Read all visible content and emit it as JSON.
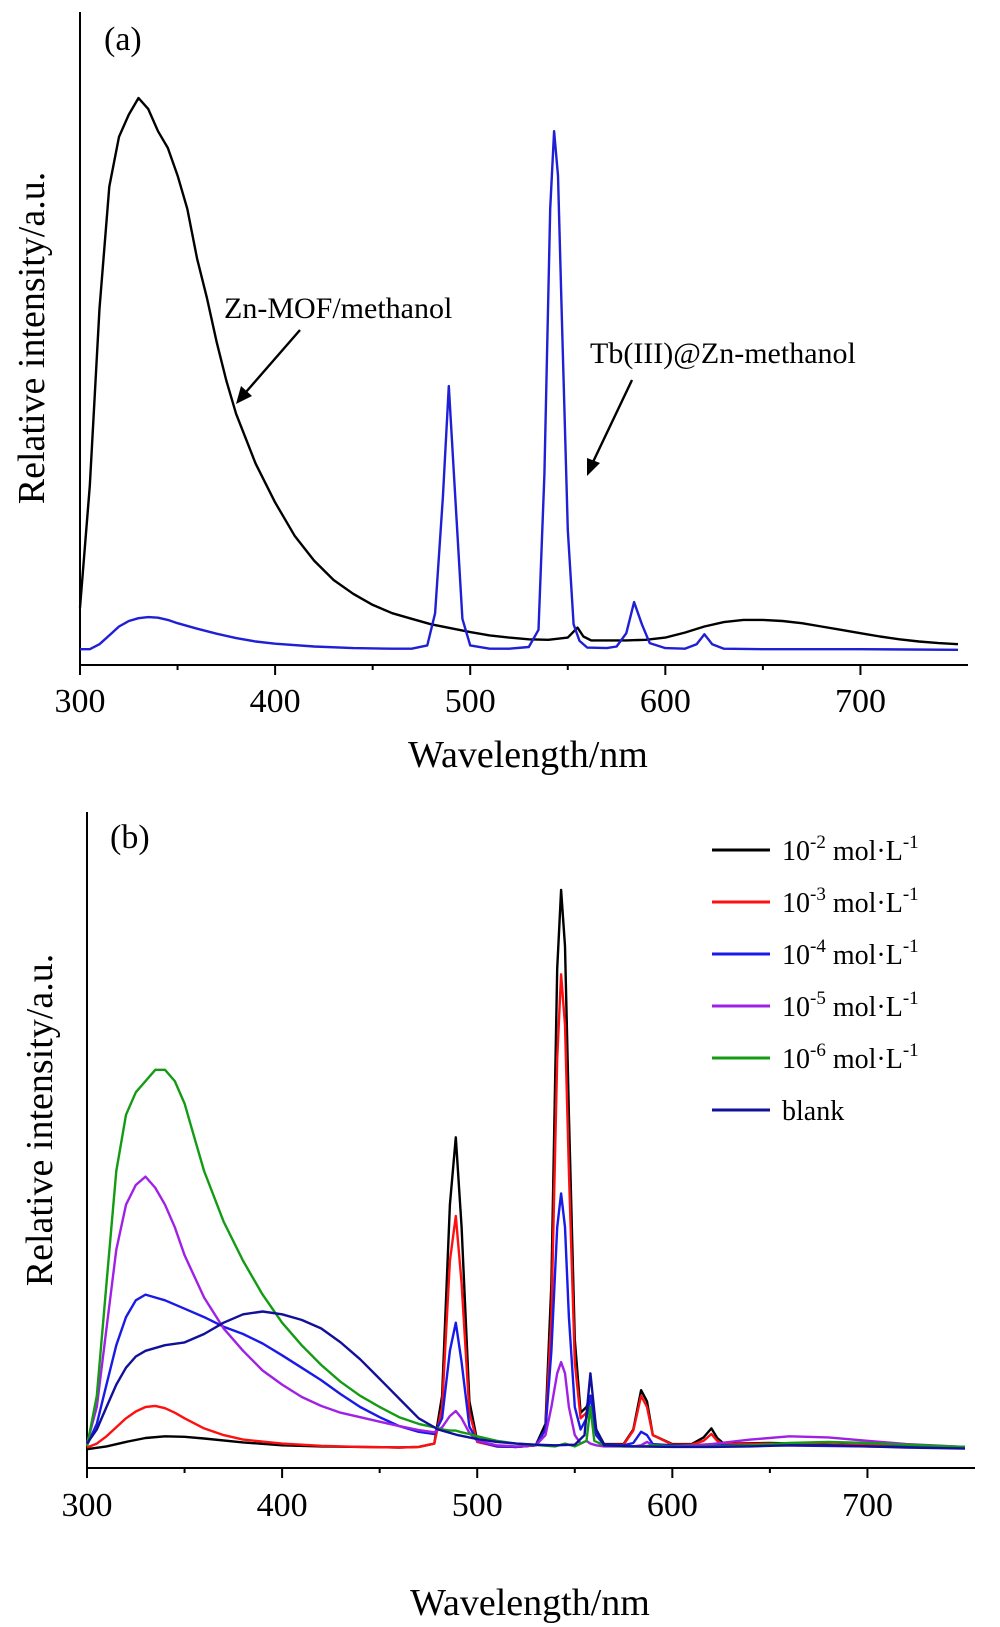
{
  "chart_data": [
    {
      "type": "line",
      "panel_label": "(a)",
      "xlabel": "Wavelength/nm",
      "ylabel": "Relative intensity/a.u.",
      "xlim": [
        300,
        750
      ],
      "ylim": [
        0,
        100
      ],
      "xticks": [
        300,
        400,
        500,
        600,
        700
      ],
      "grid": false,
      "annotations": [
        {
          "text": "Zn-MOF/methanol",
          "points_to": {
            "x": 378,
            "y": 46
          }
        },
        {
          "text": "Tb(III)@Zn-methanol",
          "points_to": {
            "x": 555,
            "y": 33
          }
        }
      ],
      "series": [
        {
          "color": "#000000",
          "x": [
            300,
            305,
            310,
            315,
            320,
            325,
            330,
            335,
            340,
            345,
            350,
            355,
            360,
            365,
            370,
            375,
            380,
            390,
            400,
            410,
            420,
            430,
            440,
            450,
            460,
            470,
            480,
            490,
            500,
            510,
            520,
            530,
            540,
            550,
            555,
            558,
            562,
            570,
            580,
            590,
            600,
            610,
            620,
            630,
            640,
            650,
            660,
            670,
            680,
            690,
            700,
            710,
            720,
            730,
            740,
            750
          ],
          "y": [
            8,
            30,
            62,
            84,
            93,
            97,
            100,
            98,
            94,
            91,
            86,
            80,
            71,
            64,
            56,
            49,
            43,
            34,
            27,
            21,
            16.5,
            13,
            10.5,
            8.5,
            7,
            6,
            5,
            4.3,
            3.6,
            3,
            2.6,
            2.3,
            2.2,
            2.6,
            4.4,
            2.8,
            2.1,
            2.1,
            2.1,
            2.2,
            2.6,
            3.5,
            4.6,
            5.4,
            5.8,
            5.8,
            5.6,
            5.2,
            4.6,
            4,
            3.4,
            2.8,
            2.3,
            1.9,
            1.6,
            1.4
          ]
        },
        {
          "color": "#1f1fd6",
          "x": [
            300,
            305,
            310,
            315,
            320,
            325,
            330,
            335,
            340,
            345,
            350,
            360,
            370,
            380,
            390,
            400,
            420,
            440,
            460,
            470,
            478,
            482,
            486,
            489,
            492,
            496,
            500,
            510,
            520,
            530,
            535,
            538,
            541,
            543,
            545,
            547,
            550,
            553,
            556,
            560,
            570,
            575,
            580,
            584,
            588,
            592,
            600,
            610,
            616,
            620,
            624,
            630,
            650,
            700,
            750
          ],
          "y": [
            0.5,
            0.5,
            1.4,
            3,
            4.6,
            5.6,
            6.1,
            6.3,
            6.2,
            5.8,
            5.2,
            4.2,
            3.3,
            2.5,
            1.9,
            1.5,
            1,
            0.7,
            0.6,
            0.6,
            1.2,
            7,
            28,
            48,
            30,
            6,
            1.2,
            0.6,
            0.6,
            0.9,
            4,
            32,
            80,
            94,
            86,
            60,
            22,
            5,
            2,
            0.8,
            0.7,
            1,
            3.4,
            9,
            5,
            1.6,
            0.7,
            0.6,
            1.4,
            3.2,
            1.4,
            0.6,
            0.5,
            0.5,
            0.4
          ]
        }
      ]
    },
    {
      "type": "line",
      "panel_label": "(b)",
      "xlabel": "Wavelength/nm",
      "ylabel": "Relative intensity/a.u.",
      "xlim": [
        300,
        750
      ],
      "ylim": [
        0,
        100
      ],
      "xticks": [
        300,
        400,
        500,
        600,
        700
      ],
      "grid": false,
      "legend_position": "top-right",
      "series": [
        {
          "name": "10-2 mol·L-1",
          "legend_base": "10",
          "legend_exp1": "-2",
          "legend_unit": " mol·L",
          "legend_exp2": "-1",
          "color": "#000000",
          "x": [
            300,
            310,
            320,
            330,
            340,
            350,
            360,
            380,
            400,
            420,
            440,
            460,
            470,
            478,
            482,
            486,
            489,
            492,
            496,
            500,
            510,
            520,
            530,
            535,
            538,
            541,
            543,
            545,
            547,
            550,
            553,
            556,
            558,
            561,
            565,
            575,
            580,
            584,
            587,
            590,
            600,
            610,
            616,
            620,
            623,
            626,
            630,
            650,
            700,
            750
          ],
          "y": [
            0.5,
            1,
            1.8,
            2.5,
            2.8,
            2.7,
            2.4,
            1.7,
            1.2,
            1,
            0.9,
            0.8,
            0.9,
            1.5,
            10,
            44,
            56,
            40,
            9,
            2,
            1,
            0.9,
            1.2,
            5,
            30,
            86,
            100,
            90,
            60,
            20,
            7,
            8,
            10,
            4,
            1.4,
            1.4,
            4,
            11,
            9,
            3,
            1.4,
            1.4,
            2.6,
            4.2,
            2.5,
            1.6,
            1.5,
            1.6,
            1.2,
            0.9
          ]
        },
        {
          "name": "10-3 mol·L-1",
          "legend_base": "10",
          "legend_exp1": "-3",
          "legend_unit": " mol·L",
          "legend_exp2": "-1",
          "color": "#ff1010",
          "x": [
            300,
            305,
            310,
            315,
            320,
            325,
            330,
            335,
            340,
            345,
            350,
            360,
            370,
            380,
            400,
            420,
            440,
            460,
            470,
            478,
            482,
            486,
            489,
            492,
            496,
            500,
            510,
            520,
            530,
            535,
            538,
            541,
            543,
            545,
            547,
            550,
            553,
            556,
            558,
            561,
            565,
            575,
            580,
            584,
            587,
            590,
            600,
            610,
            616,
            620,
            623,
            626,
            630,
            650,
            700,
            750
          ],
          "y": [
            0.8,
            1.5,
            2.8,
            4.4,
            6,
            7.2,
            8,
            8.2,
            7.8,
            7,
            6,
            4.2,
            3,
            2.2,
            1.5,
            1.1,
            0.9,
            0.8,
            0.9,
            1.5,
            8,
            34,
            42,
            30,
            7,
            1.8,
            1,
            0.9,
            1.2,
            4,
            24,
            70,
            85,
            76,
            50,
            16,
            6,
            7,
            8,
            3,
            1.3,
            1.3,
            3.8,
            10,
            8,
            3,
            1.3,
            1.3,
            2,
            3.2,
            2,
            1.4,
            1.4,
            1.5,
            1.2,
            0.9
          ]
        },
        {
          "name": "10-4 mol·L-1",
          "legend_base": "10",
          "legend_exp1": "-4",
          "legend_unit": " mol·L",
          "legend_exp2": "-1",
          "color": "#1a1ae8",
          "x": [
            300,
            305,
            310,
            315,
            320,
            325,
            330,
            335,
            340,
            350,
            360,
            370,
            380,
            390,
            400,
            410,
            420,
            430,
            440,
            450,
            460,
            470,
            478,
            482,
            486,
            489,
            492,
            496,
            500,
            510,
            520,
            530,
            535,
            538,
            541,
            543,
            545,
            547,
            550,
            553,
            556,
            558,
            561,
            565,
            575,
            580,
            584,
            587,
            590,
            600,
            620,
            650,
            700,
            750
          ],
          "y": [
            1.2,
            5,
            12,
            19,
            24,
            27,
            28,
            27.5,
            27,
            25.5,
            24,
            22.3,
            21,
            19.3,
            17.2,
            15,
            12.8,
            10.3,
            8,
            6.2,
            4.6,
            3.6,
            3.2,
            6,
            18,
            23,
            16,
            4.5,
            2,
            1,
            0.9,
            1.2,
            4,
            18,
            40,
            46,
            40,
            24,
            8,
            4,
            6,
            10,
            3,
            1.3,
            1.2,
            1.6,
            3.6,
            3,
            1.4,
            1.2,
            1.2,
            1.2,
            1,
            0.8
          ]
        },
        {
          "name": "10-5 mol·L-1",
          "legend_base": "10",
          "legend_exp1": "-5",
          "legend_unit": " mol·L",
          "legend_exp2": "-1",
          "color": "#a020e6",
          "x": [
            300,
            305,
            310,
            315,
            320,
            325,
            330,
            335,
            340,
            345,
            350,
            360,
            370,
            380,
            390,
            400,
            410,
            420,
            430,
            440,
            450,
            460,
            470,
            478,
            482,
            486,
            489,
            492,
            496,
            500,
            510,
            520,
            530,
            535,
            538,
            541,
            543,
            545,
            547,
            550,
            553,
            556,
            558,
            561,
            565,
            575,
            580,
            584,
            587,
            590,
            600,
            620,
            640,
            660,
            680,
            700,
            720,
            750
          ],
          "y": [
            1.5,
            8,
            22,
            36,
            44,
            47.5,
            49,
            47,
            44,
            40,
            35,
            27.5,
            22,
            18,
            14.5,
            12,
            9.8,
            8.2,
            7,
            6.2,
            5.4,
            4.6,
            3.9,
            3.5,
            4.4,
            6.4,
            7.3,
            6,
            3.4,
            2,
            1.2,
            1,
            1.2,
            3,
            8,
            14,
            16,
            14,
            8,
            3,
            1.5,
            2,
            1.5,
            1.2,
            1,
            1,
            1,
            1.2,
            1.8,
            1.2,
            1,
            1.4,
            2.2,
            2.8,
            2.6,
            2,
            1.4,
            0.9
          ]
        },
        {
          "name": "10-6 mol·L-1",
          "legend_base": "10",
          "legend_exp1": "-6",
          "legend_unit": " mol·L",
          "legend_exp2": "-1",
          "color": "#149b14",
          "x": [
            300,
            305,
            310,
            315,
            320,
            325,
            330,
            335,
            340,
            345,
            350,
            355,
            360,
            370,
            380,
            390,
            400,
            410,
            420,
            430,
            440,
            450,
            460,
            470,
            478,
            482,
            486,
            489,
            492,
            496,
            500,
            510,
            520,
            540,
            545,
            550,
            556,
            558,
            560,
            565,
            575,
            585,
            590,
            600,
            620,
            640,
            660,
            680,
            700,
            720,
            750
          ],
          "y": [
            1,
            10,
            30,
            50,
            60,
            64,
            66,
            68,
            68,
            66,
            62,
            56,
            50,
            41,
            34,
            28,
            23,
            19,
            15.5,
            12.5,
            10,
            8,
            6.2,
            5,
            4.4,
            4,
            3.8,
            3.8,
            3.5,
            3.2,
            2.8,
            2,
            1.5,
            1,
            1.5,
            1,
            2,
            8,
            2,
            1.2,
            1,
            1,
            1.2,
            1,
            1,
            1.2,
            1.6,
            1.8,
            1.6,
            1.3,
            0.9
          ]
        },
        {
          "name": "blank",
          "legend_label": "blank",
          "color": "#10109a",
          "x": [
            300,
            305,
            310,
            315,
            320,
            325,
            330,
            340,
            350,
            360,
            370,
            380,
            390,
            400,
            410,
            420,
            430,
            440,
            450,
            460,
            470,
            480,
            490,
            500,
            510,
            520,
            530,
            540,
            550,
            555,
            558,
            561,
            565,
            580,
            600,
            620,
            640,
            660,
            680,
            700,
            720,
            750
          ],
          "y": [
            1.5,
            4,
            8,
            12,
            15,
            17,
            18,
            19,
            19.5,
            21,
            23,
            24.5,
            25,
            24.5,
            23.5,
            22,
            19.5,
            16.5,
            13,
            9.5,
            6,
            4,
            3,
            2.3,
            1.8,
            1.5,
            1.3,
            1.2,
            1.3,
            3,
            14,
            4,
            1.2,
            1,
            0.9,
            0.9,
            1,
            1.2,
            1.2,
            1,
            0.8,
            0.6
          ]
        }
      ]
    }
  ]
}
